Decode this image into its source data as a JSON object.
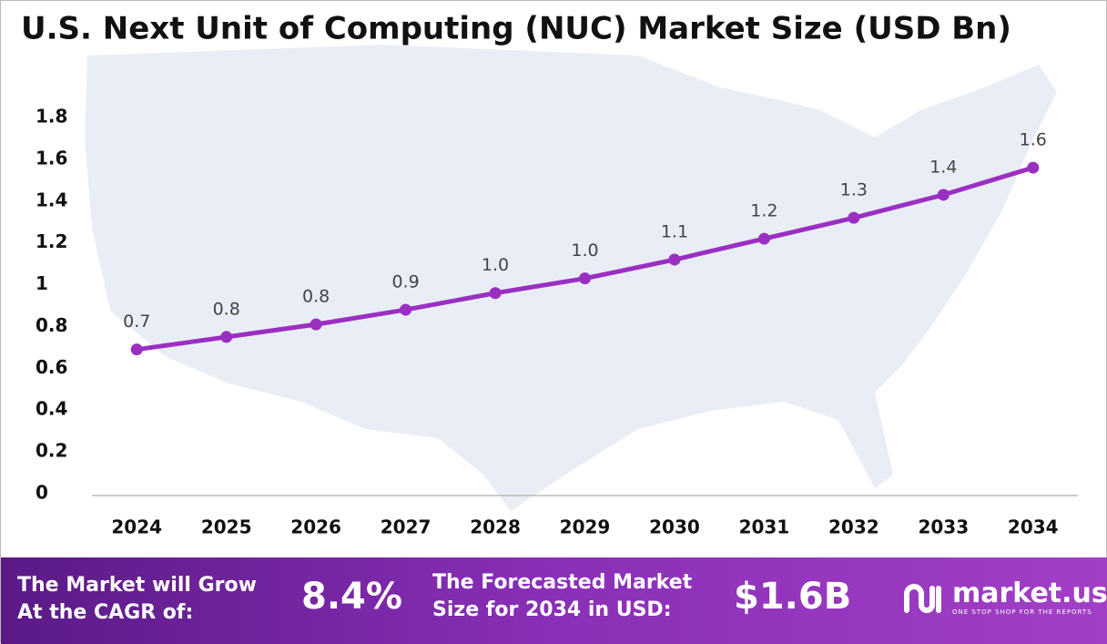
{
  "chart_data": {
    "type": "line",
    "title": "U.S. Next Unit of Computing (NUC) Market Size (USD Bn)",
    "categories": [
      "2024",
      "2025",
      "2026",
      "2027",
      "2028",
      "2029",
      "2030",
      "2031",
      "2032",
      "2033",
      "2034"
    ],
    "values": [
      0.69,
      0.75,
      0.81,
      0.88,
      0.96,
      1.03,
      1.12,
      1.22,
      1.32,
      1.43,
      1.56
    ],
    "value_labels": [
      "0.7",
      "0.8",
      "0.8",
      "0.9",
      "1.0",
      "1.0",
      "1.1",
      "1.2",
      "1.3",
      "1.4",
      "1.6"
    ],
    "color": "#9a2fc2",
    "ylim": [
      0,
      1.8
    ],
    "yticks": [
      0,
      0.2,
      0.4,
      0.6,
      0.8,
      1,
      1.2,
      1.4,
      1.6,
      1.8
    ],
    "grid": false
  },
  "footer": {
    "cagr_text": [
      "The Market will Grow",
      "At the CAGR of:"
    ],
    "cagr_value": "8.4%",
    "forecast_text": [
      "The Forecasted Market",
      "Size for 2034 in USD:"
    ],
    "forecast_value": "$1.6B",
    "brand": "market.us",
    "tagline": "ONE STOP SHOP FOR THE REPORTS"
  }
}
